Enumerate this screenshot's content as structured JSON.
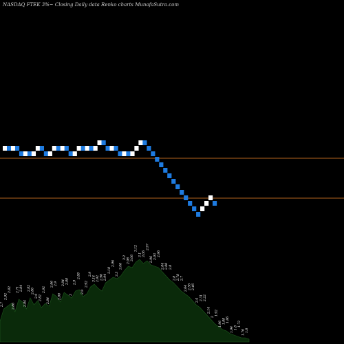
{
  "chart_data": {
    "type": "renko",
    "title": "NASDAQ FTEK 3%~  Closing Daily data  Renko  charts MunafaSutra.com",
    "colors": {
      "background": "#000000",
      "up_brick": "#ffffff",
      "down_brick": "#1e7be0",
      "reference_line": "#b4641e",
      "volume_fill": "#0a2a0a",
      "volume_outline": "#1e5a1e"
    },
    "reference_lines": [
      {
        "value": 2.7
      },
      {
        "value": 2.12
      }
    ],
    "bricks": [
      {
        "dir": "up",
        "top": 2.88,
        "bottom": 2.8
      },
      {
        "dir": "down",
        "top": 2.88,
        "bottom": 2.8
      },
      {
        "dir": "up",
        "top": 2.88,
        "bottom": 2.8
      },
      {
        "dir": "down",
        "top": 2.88,
        "bottom": 2.8
      },
      {
        "dir": "down",
        "top": 2.8,
        "bottom": 2.72
      },
      {
        "dir": "up",
        "top": 2.8,
        "bottom": 2.72
      },
      {
        "dir": "down",
        "top": 2.8,
        "bottom": 2.72
      },
      {
        "dir": "up",
        "top": 2.8,
        "bottom": 2.72
      },
      {
        "dir": "up",
        "top": 2.88,
        "bottom": 2.8
      },
      {
        "dir": "down",
        "top": 2.88,
        "bottom": 2.8
      },
      {
        "dir": "down",
        "top": 2.8,
        "bottom": 2.72
      },
      {
        "dir": "up",
        "top": 2.8,
        "bottom": 2.72
      },
      {
        "dir": "up",
        "top": 2.88,
        "bottom": 2.8
      },
      {
        "dir": "down",
        "top": 2.88,
        "bottom": 2.8
      },
      {
        "dir": "up",
        "top": 2.88,
        "bottom": 2.8
      },
      {
        "dir": "down",
        "top": 2.88,
        "bottom": 2.8
      },
      {
        "dir": "down",
        "top": 2.8,
        "bottom": 2.72
      },
      {
        "dir": "up",
        "top": 2.8,
        "bottom": 2.72
      },
      {
        "dir": "up",
        "top": 2.88,
        "bottom": 2.8
      },
      {
        "dir": "down",
        "top": 2.88,
        "bottom": 2.8
      },
      {
        "dir": "up",
        "top": 2.88,
        "bottom": 2.8
      },
      {
        "dir": "down",
        "top": 2.88,
        "bottom": 2.8
      },
      {
        "dir": "up",
        "top": 2.88,
        "bottom": 2.8
      },
      {
        "dir": "up",
        "top": 2.96,
        "bottom": 2.88
      },
      {
        "dir": "down",
        "top": 2.96,
        "bottom": 2.88
      },
      {
        "dir": "down",
        "top": 2.88,
        "bottom": 2.8
      },
      {
        "dir": "up",
        "top": 2.88,
        "bottom": 2.8
      },
      {
        "dir": "down",
        "top": 2.88,
        "bottom": 2.8
      },
      {
        "dir": "down",
        "top": 2.8,
        "bottom": 2.72
      },
      {
        "dir": "up",
        "top": 2.8,
        "bottom": 2.72
      },
      {
        "dir": "down",
        "top": 2.8,
        "bottom": 2.72
      },
      {
        "dir": "up",
        "top": 2.8,
        "bottom": 2.72
      },
      {
        "dir": "up",
        "top": 2.88,
        "bottom": 2.8
      },
      {
        "dir": "up",
        "top": 2.96,
        "bottom": 2.88
      },
      {
        "dir": "down",
        "top": 2.96,
        "bottom": 2.88
      },
      {
        "dir": "down",
        "top": 2.88,
        "bottom": 2.8
      },
      {
        "dir": "down",
        "top": 2.8,
        "bottom": 2.72
      },
      {
        "dir": "down",
        "top": 2.72,
        "bottom": 2.64
      },
      {
        "dir": "down",
        "top": 2.64,
        "bottom": 2.56
      },
      {
        "dir": "down",
        "top": 2.56,
        "bottom": 2.48
      },
      {
        "dir": "down",
        "top": 2.48,
        "bottom": 2.4
      },
      {
        "dir": "down",
        "top": 2.4,
        "bottom": 2.32
      },
      {
        "dir": "down",
        "top": 2.32,
        "bottom": 2.24
      },
      {
        "dir": "down",
        "top": 2.24,
        "bottom": 2.16
      },
      {
        "dir": "down",
        "top": 2.16,
        "bottom": 2.08
      },
      {
        "dir": "down",
        "top": 2.08,
        "bottom": 2.0
      },
      {
        "dir": "down",
        "top": 2.0,
        "bottom": 1.92
      },
      {
        "dir": "down",
        "top": 1.92,
        "bottom": 1.84
      },
      {
        "dir": "up",
        "top": 2.0,
        "bottom": 1.92
      },
      {
        "dir": "up",
        "top": 2.08,
        "bottom": 2.0
      },
      {
        "dir": "up",
        "top": 2.16,
        "bottom": 2.08
      },
      {
        "dir": "down",
        "top": 2.08,
        "bottom": 2.0
      }
    ],
    "volume_profile": [
      30,
      48,
      52,
      56,
      44,
      62,
      58,
      48,
      64,
      54,
      60,
      50,
      56,
      52,
      70,
      66,
      58,
      72,
      68,
      64,
      74,
      76,
      66,
      70,
      80,
      84,
      78,
      74,
      86,
      90,
      94,
      92,
      96,
      104,
      110,
      108,
      116,
      120,
      114,
      118,
      112,
      110,
      108,
      102,
      96,
      90,
      86,
      80,
      74,
      70,
      66,
      60,
      54,
      50,
      44,
      38,
      32,
      26,
      22,
      18,
      16,
      12,
      10,
      8,
      6,
      6,
      4
    ],
    "volume_labels": [
      {
        "text": "2.7"
      },
      {
        "text": "2.92"
      },
      {
        "text": "2.82"
      },
      {
        "text": "2.86"
      },
      {
        "text": "2.71"
      },
      {
        "text": "2.84"
      },
      {
        "text": "2.84"
      },
      {
        "text": "2.82"
      },
      {
        "text": "2.86"
      },
      {
        "text": "2.9"
      },
      {
        "text": "2.82"
      },
      {
        "text": "2.92"
      },
      {
        "text": "2.84"
      },
      {
        "text": "2.86"
      },
      {
        "text": "2.9"
      },
      {
        "text": "2.88"
      },
      {
        "text": "2.84"
      },
      {
        "text": "2.88"
      },
      {
        "text": "3"
      },
      {
        "text": "2.9"
      },
      {
        "text": "2.88"
      },
      {
        "text": "2.9"
      },
      {
        "text": "2.92"
      },
      {
        "text": "2.9"
      },
      {
        "text": "3.14"
      },
      {
        "text": "2.92"
      },
      {
        "text": "2.96"
      },
      {
        "text": "2.94"
      },
      {
        "text": "3.18"
      },
      {
        "text": "2.96"
      },
      {
        "text": "3.3"
      },
      {
        "text": "3.06"
      },
      {
        "text": "3.2"
      },
      {
        "text": "2.98"
      },
      {
        "text": "3.06"
      },
      {
        "text": "3.12"
      },
      {
        "text": "3.1"
      },
      {
        "text": "3.06"
      },
      {
        "text": "2.97"
      },
      {
        "text": "2.96"
      },
      {
        "text": "2.93"
      },
      {
        "text": "2.96"
      },
      {
        "text": "2.84"
      },
      {
        "text": "2.88"
      },
      {
        "text": "2.8"
      },
      {
        "text": "2.8"
      },
      {
        "text": "2.78"
      },
      {
        "text": "2.7"
      },
      {
        "text": "2.64"
      },
      {
        "text": "2.56"
      },
      {
        "text": "2.46"
      },
      {
        "text": "2.4"
      },
      {
        "text": "2.31"
      },
      {
        "text": "2.22"
      },
      {
        "text": "2.14"
      },
      {
        "text": "2"
      },
      {
        "text": "1.92"
      },
      {
        "text": "1.96"
      },
      {
        "text": "1.88"
      },
      {
        "text": "1.86"
      },
      {
        "text": "1.94"
      },
      {
        "text": "1.8"
      },
      {
        "text": "1.72"
      },
      {
        "text": "1.76"
      },
      {
        "text": "1.6"
      }
    ]
  }
}
